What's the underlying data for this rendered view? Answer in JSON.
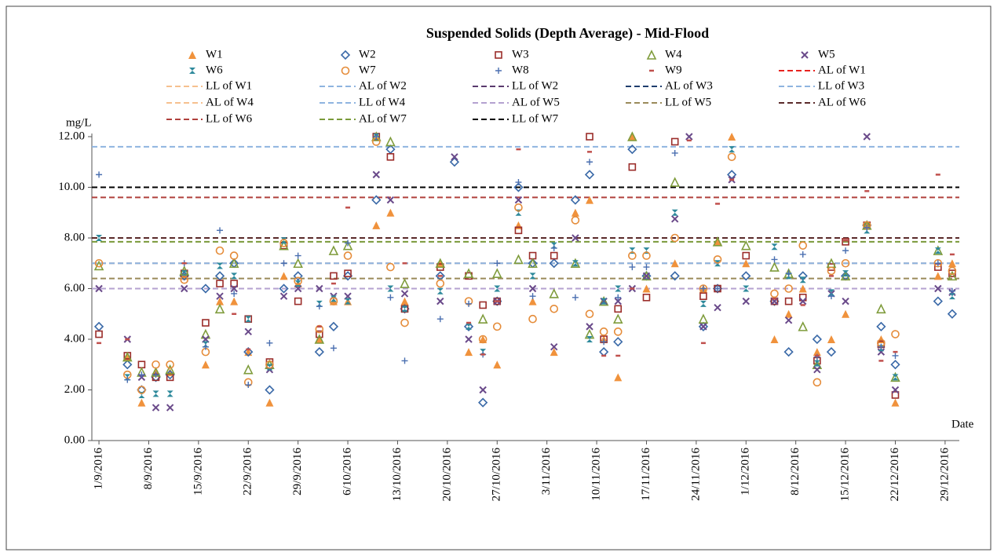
{
  "chart_data": {
    "type": "scatter",
    "title": "Suspended Solids (Depth Average) - Mid-Flood",
    "y_label": "mg/L",
    "x_label": "Date",
    "x": [
      "1/9/2016",
      "5/9/2016",
      "7/9/2016",
      "9/9/2016",
      "11/9/2016",
      "13/9/2016",
      "16/9/2016",
      "18/9/2016",
      "20/9/2016",
      "22/9/2016",
      "25/9/2016",
      "27/9/2016",
      "29/9/2016",
      "2/10/2016",
      "4/10/2016",
      "6/10/2016",
      "10/10/2016",
      "12/10/2016",
      "14/10/2016",
      "19/10/2016",
      "21/10/2016",
      "23/10/2016",
      "25/10/2016",
      "27/10/2016",
      "30/10/2016",
      "1/11/2016",
      "4/11/2016",
      "7/11/2016",
      "9/11/2016",
      "11/11/2016",
      "13/11/2016",
      "15/11/2016",
      "17/11/2016",
      "21/11/2016",
      "23/11/2016",
      "25/11/2016",
      "27/11/2016",
      "29/11/2016",
      "1/12/2016",
      "5/12/2016",
      "7/12/2016",
      "9/12/2016",
      "11/12/2016",
      "13/12/2016",
      "15/12/2016",
      "18/12/2016",
      "20/12/2016",
      "22/12/2016",
      "28/12/2016",
      "30/12/2016"
    ],
    "series": [
      {
        "name": "W1",
        "color": "#f0923c",
        "marker": "triangle-filled",
        "values": [
          null,
          3.3,
          1.5,
          2.7,
          2.7,
          6.5,
          3.0,
          5.5,
          5.5,
          3.5,
          1.5,
          6.5,
          6.2,
          4.0,
          5.5,
          5.5,
          8.5,
          9.0,
          5.5,
          7.0,
          null,
          3.5,
          4.0,
          3.0,
          8.5,
          5.5,
          3.5,
          9.0,
          9.5,
          4.0,
          2.5,
          12.0,
          6.0,
          7.0,
          null,
          6.0,
          7.85,
          12.0,
          7.0,
          4.0,
          5.0,
          6.0,
          3.5,
          4.0,
          5.0,
          8.5,
          4.0,
          1.5,
          6.5,
          7.0
        ]
      },
      {
        "name": "W2",
        "color": "#3b6aa8",
        "marker": "diamond",
        "values": [
          4.5,
          3.0,
          2.0,
          2.5,
          2.6,
          6.5,
          6.0,
          6.5,
          7.0,
          3.5,
          2.0,
          6.0,
          6.5,
          3.5,
          4.5,
          6.5,
          9.5,
          11.5,
          5.2,
          6.5,
          11.0,
          4.5,
          1.5,
          5.5,
          10.0,
          7.0,
          7.0,
          9.5,
          10.5,
          3.5,
          3.9,
          11.5,
          6.5,
          6.5,
          null,
          4.5,
          6.0,
          10.5,
          6.5,
          5.5,
          3.5,
          6.5,
          4.0,
          3.5,
          6.5,
          8.5,
          4.5,
          3.0,
          5.5,
          5.0
        ]
      },
      {
        "name": "W3",
        "color": "#9b2d2a",
        "marker": "square",
        "values": [
          4.2,
          3.35,
          3.0,
          2.5,
          2.5,
          6.6,
          4.65,
          6.2,
          6.2,
          4.8,
          3.1,
          7.7,
          5.5,
          4.2,
          6.5,
          6.6,
          12.0,
          11.2,
          5.2,
          6.85,
          null,
          6.5,
          5.35,
          5.5,
          8.3,
          7.3,
          7.3,
          null,
          12.0,
          4.0,
          5.2,
          10.8,
          5.65,
          11.8,
          null,
          5.7,
          6.0,
          null,
          7.3,
          5.5,
          5.5,
          5.65,
          3.15,
          6.85,
          7.85,
          8.5,
          3.8,
          1.8,
          6.85,
          6.6
        ]
      },
      {
        "name": "W4",
        "color": "#7f9c3c",
        "marker": "triangle",
        "values": [
          6.9,
          3.3,
          2.7,
          2.7,
          2.8,
          6.7,
          4.2,
          5.2,
          7.0,
          2.8,
          3.0,
          7.7,
          7.0,
          4.0,
          7.5,
          7.7,
          12.0,
          11.8,
          6.2,
          7.0,
          null,
          6.6,
          4.8,
          6.6,
          7.15,
          7.0,
          5.8,
          7.0,
          4.2,
          5.5,
          4.8,
          12.0,
          6.5,
          10.2,
          null,
          4.8,
          7.85,
          null,
          7.7,
          6.85,
          6.6,
          4.5,
          3.0,
          7.0,
          6.5,
          8.5,
          5.2,
          2.5,
          7.5,
          6.5
        ]
      },
      {
        "name": "W5",
        "color": "#6a4a8a",
        "marker": "x",
        "values": [
          6.0,
          4.0,
          2.5,
          1.3,
          1.3,
          6.0,
          4.0,
          5.7,
          6.0,
          4.3,
          2.8,
          5.7,
          6.0,
          6.0,
          5.7,
          5.7,
          10.5,
          9.5,
          5.8,
          5.5,
          11.2,
          4.0,
          2.0,
          5.5,
          9.5,
          6.0,
          3.7,
          8.0,
          4.5,
          5.5,
          5.5,
          6.0,
          6.5,
          8.75,
          12.0,
          4.5,
          5.25,
          10.3,
          5.5,
          5.5,
          4.75,
          5.5,
          2.8,
          5.8,
          5.5,
          12.0,
          3.5,
          2.0,
          6.0,
          5.85
        ]
      },
      {
        "name": "W6",
        "color": "#2f8a9c",
        "marker": "asterisk",
        "values": [
          8.0,
          2.5,
          1.8,
          1.85,
          1.85,
          6.6,
          3.8,
          6.9,
          6.5,
          4.8,
          2.9,
          7.9,
          6.2,
          5.4,
          5.6,
          5.5,
          12.0,
          6.0,
          5.2,
          5.9,
          null,
          4.5,
          3.5,
          6.0,
          9.0,
          6.5,
          7.7,
          7.0,
          4.0,
          5.5,
          6.0,
          7.5,
          7.5,
          9.0,
          null,
          5.4,
          7.0,
          11.5,
          6.0,
          7.65,
          6.5,
          6.35,
          3.05,
          5.85,
          6.6,
          8.3,
          3.65,
          2.5,
          7.5,
          5.7
        ]
      },
      {
        "name": "W7",
        "color": "#e58c3a",
        "marker": "circle",
        "values": [
          7.0,
          2.6,
          2.0,
          3.0,
          3.0,
          6.35,
          3.5,
          7.5,
          7.3,
          2.3,
          3.0,
          7.8,
          6.3,
          4.4,
          5.5,
          7.3,
          11.8,
          6.85,
          4.65,
          6.2,
          null,
          5.5,
          4.0,
          4.5,
          9.2,
          4.8,
          5.2,
          8.7,
          5.0,
          4.3,
          4.3,
          7.3,
          7.3,
          8.0,
          null,
          6.0,
          7.15,
          11.2,
          null,
          5.8,
          6.0,
          7.7,
          2.3,
          6.7,
          7.0,
          8.5,
          3.85,
          4.2,
          7.0,
          6.7
        ]
      },
      {
        "name": "W8",
        "color": "#4a6fb0",
        "marker": "plus",
        "values": [
          10.5,
          2.4,
          2.6,
          2.6,
          null,
          7.0,
          3.7,
          8.3,
          5.8,
          2.2,
          3.85,
          7.0,
          7.3,
          5.3,
          3.65,
          7.8,
          12.0,
          5.65,
          3.15,
          4.8,
          null,
          5.4,
          3.4,
          7.0,
          10.2,
          5.7,
          7.6,
          5.65,
          11.0,
          3.9,
          5.65,
          6.85,
          6.85,
          11.35,
          null,
          6.0,
          6.0,
          null,
          null,
          7.15,
          6.6,
          7.35,
          3.3,
          5.7,
          7.5,
          8.4,
          3.7,
          3.35,
          7.0,
          5.9
        ]
      },
      {
        "name": "W9",
        "color": "#c0504d",
        "marker": "dash",
        "values": [
          3.85,
          4.0,
          null,
          null,
          null,
          7.0,
          null,
          null,
          5.0,
          3.6,
          null,
          null,
          null,
          4.5,
          6.2,
          9.2,
          null,
          null,
          7.0,
          6.5,
          null,
          4.65,
          3.4,
          5.5,
          11.5,
          null,
          null,
          null,
          11.4,
          3.35,
          3.35,
          6.0,
          null,
          null,
          11.85,
          3.85,
          9.35,
          10.3,
          null,
          5.6,
          null,
          5.35,
          3.35,
          6.5,
          7.9,
          9.85,
          3.15,
          3.5,
          10.5,
          7.35
        ]
      }
    ],
    "reference_lines": [
      {
        "name": "AL of W1",
        "color": "#e8231f",
        "value": 8.0
      },
      {
        "name": "LL of W1",
        "color": "#f6c08f",
        "value": 10.0
      },
      {
        "name": "AL of W2",
        "color": "#8fb4e0",
        "value": 7.0
      },
      {
        "name": "LL of W2",
        "color": "#5a3a6e",
        "value": 8.0
      },
      {
        "name": "AL of W3",
        "color": "#1f3e6e",
        "value": 6.0
      },
      {
        "name": "LL of W3",
        "color": "#8fb4e0",
        "value": 11.6
      },
      {
        "name": "AL of W4",
        "color": "#f6c08f",
        "value": 7.0
      },
      {
        "name": "LL of W4",
        "color": "#8fb4e0",
        "value": 7.0
      },
      {
        "name": "AL of W5",
        "color": "#b4a2d0",
        "value": 6.0
      },
      {
        "name": "LL of W5",
        "color": "#9a8a5a",
        "value": 6.4
      },
      {
        "name": "AL of W6",
        "color": "#5a2a2a",
        "value": 8.0
      },
      {
        "name": "LL of W6",
        "color": "#b0403c",
        "value": 9.6
      },
      {
        "name": "AL of W7",
        "color": "#7a9a3a",
        "value": 7.85
      },
      {
        "name": "LL of W7",
        "color": "#000000",
        "value": 10.0
      }
    ],
    "xlim": [
      "31/8/2016",
      "31/12/2016"
    ],
    "xticks": [
      "1/9/2016",
      "8/9/2016",
      "15/9/2016",
      "22/9/2016",
      "29/9/2016",
      "6/10/2016",
      "13/10/2016",
      "20/10/2016",
      "27/10/2016",
      "3/11/2016",
      "10/11/2016",
      "17/11/2016",
      "24/11/2016",
      "1/12/2016",
      "8/12/2016",
      "15/12/2016",
      "22/12/2016",
      "29/12/2016"
    ],
    "ylim": [
      0,
      12
    ],
    "yticks": [
      {
        "value": 0,
        "label": "0.00"
      },
      {
        "value": 2,
        "label": "2.00"
      },
      {
        "value": 4,
        "label": "4.00"
      },
      {
        "value": 6,
        "label": "6.00"
      },
      {
        "value": 8,
        "label": "8.00"
      },
      {
        "value": 10,
        "label": "10.00"
      },
      {
        "value": 12,
        "label": "12.00"
      }
    ],
    "grid": false
  }
}
